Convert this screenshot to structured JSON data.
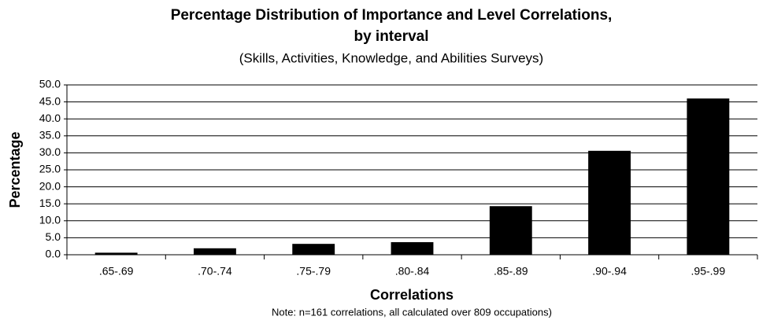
{
  "chart_data": {
    "type": "bar",
    "title": [
      "Percentage Distribution of Importance and Level Correlations,",
      "by interval"
    ],
    "subtitle": "(Skills, Activities, Knowledge, and Abilities Surveys)",
    "xlabel": "Correlations",
    "ylabel": "Percentage",
    "note": "Note: n=161 correlations, all calculated over 809 occupations)",
    "categories": [
      ".65-.69",
      ".70-.74",
      ".75-.79",
      ".80-.84",
      ".85-.89",
      ".90-.94",
      ".95-.99"
    ],
    "values": [
      0.6,
      1.9,
      3.2,
      3.7,
      14.3,
      30.6,
      46.0
    ],
    "color": "#000000",
    "ylim": [
      0,
      50
    ],
    "yticks": [
      {
        "value": 0,
        "label": "0.0"
      },
      {
        "value": 5,
        "label": "5.0"
      },
      {
        "value": 10,
        "label": "10.0"
      },
      {
        "value": 15,
        "label": "15.0"
      },
      {
        "value": 20,
        "label": "20.0"
      },
      {
        "value": 25,
        "label": "25.0"
      },
      {
        "value": 30,
        "label": "30.0"
      },
      {
        "value": 35,
        "label": "35.0"
      },
      {
        "value": 40,
        "label": "40.0"
      },
      {
        "value": 45,
        "label": "45.0"
      },
      {
        "value": 50,
        "label": "50.0"
      }
    ],
    "grid": true
  }
}
